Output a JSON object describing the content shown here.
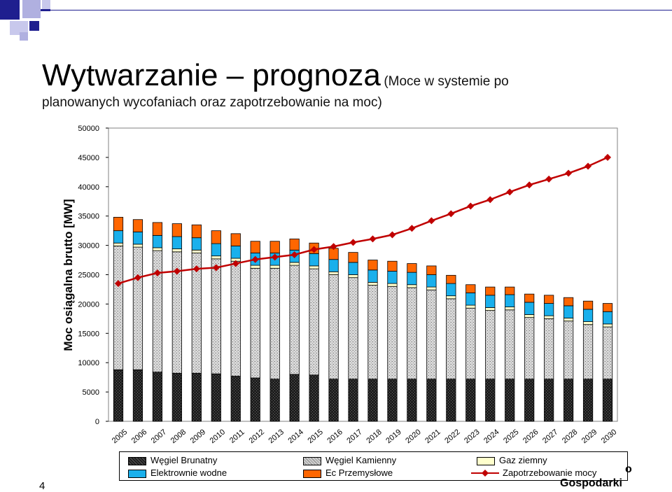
{
  "slide": {
    "title_main": "Wytwarzanie – prognoza",
    "title_sub": "(Moce w systemie po",
    "title_sub2": "planowanych wycofaniach oraz zapotrzebowanie na moc)",
    "page_number": "4",
    "footer_fragment": "o",
    "footer_text": "Gospodarki"
  },
  "colors": {
    "deco_navy": "#1f1f8f",
    "deco_lavender": "#b0b0e0",
    "brunatny": "#2a2a2a",
    "kamienny": "#c8c8c8",
    "gaz": "#ffffcc",
    "wodne": "#1ab0ec",
    "ec": "#ff6600",
    "zapotrzebowanie": "#c00000"
  },
  "chart_data": {
    "type": "bar",
    "stacked": true,
    "ylabel": "Moc osiągalna brutto [MW]",
    "xlabel": "",
    "ylim": [
      0,
      50000
    ],
    "yticks": [
      0,
      5000,
      10000,
      15000,
      20000,
      25000,
      30000,
      35000,
      40000,
      45000,
      50000
    ],
    "grid": false,
    "legend_position": "bottom",
    "categories": [
      "2005",
      "2006",
      "2007",
      "2008",
      "2009",
      "2010",
      "2011",
      "2012",
      "2013",
      "2014",
      "2015",
      "2016",
      "2017",
      "2018",
      "2019",
      "2020",
      "2021",
      "2022",
      "2023",
      "2024",
      "2025",
      "2026",
      "2027",
      "2028",
      "2029",
      "2030"
    ],
    "series": [
      {
        "name": "Węgiel Brunatny",
        "kind": "bar",
        "values": [
          8800,
          8800,
          8400,
          8200,
          8200,
          8100,
          7700,
          7400,
          7200,
          8000,
          7900,
          7200,
          7200,
          7200,
          7200,
          7200,
          7200,
          7200,
          7200,
          7200,
          7200,
          7200,
          7200,
          7200,
          7200,
          7200
        ]
      },
      {
        "name": "Węgiel Kamienny",
        "kind": "bar",
        "values": [
          21100,
          20900,
          20700,
          20700,
          20500,
          19600,
          19600,
          18700,
          18900,
          18600,
          18100,
          17800,
          17300,
          16000,
          15800,
          15600,
          15200,
          13700,
          12100,
          11700,
          11800,
          10500,
          10300,
          9900,
          9300,
          8900
        ]
      },
      {
        "name": "Gaz ziemny",
        "kind": "bar",
        "values": [
          500,
          500,
          500,
          500,
          500,
          500,
          500,
          500,
          500,
          500,
          500,
          500,
          500,
          500,
          500,
          500,
          500,
          500,
          500,
          500,
          500,
          500,
          500,
          500,
          500,
          500
        ]
      },
      {
        "name": "Elektrownie wodne",
        "kind": "bar",
        "values": [
          2100,
          2100,
          2100,
          2100,
          2100,
          2100,
          2100,
          2100,
          2100,
          2100,
          2100,
          2100,
          2100,
          2100,
          2100,
          2100,
          2100,
          2100,
          2100,
          2100,
          2100,
          2100,
          2100,
          2100,
          2100,
          2100
        ]
      },
      {
        "name": "Ec Przemysłowe",
        "kind": "bar",
        "values": [
          2300,
          2100,
          2200,
          2200,
          2200,
          2200,
          2100,
          2000,
          2000,
          1900,
          1800,
          1900,
          1700,
          1700,
          1700,
          1500,
          1500,
          1400,
          1400,
          1400,
          1300,
          1400,
          1400,
          1400,
          1400,
          1400
        ]
      },
      {
        "name": "Zapotrzebowanie mocy",
        "kind": "line",
        "values": [
          23500,
          24500,
          25300,
          25600,
          26000,
          26200,
          26900,
          27600,
          28000,
          28400,
          29300,
          29800,
          30500,
          31100,
          31800,
          32900,
          34200,
          35400,
          36700,
          37800,
          39100,
          40300,
          41300,
          42300,
          43500,
          45000
        ]
      }
    ]
  }
}
